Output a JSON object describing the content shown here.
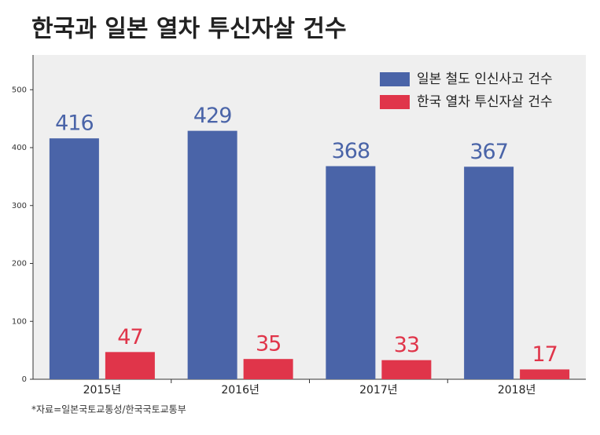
{
  "chart_data": {
    "type": "bar",
    "title": "한국과 일본 열차 투신자살 건수",
    "categories": [
      "2015년",
      "2016년",
      "2017년",
      "2018년"
    ],
    "series": [
      {
        "name": "일본 철도 인신사고 건수",
        "color": "#4a64a8",
        "values": [
          416,
          429,
          368,
          367
        ]
      },
      {
        "name": "한국 열차 투신자살 건수",
        "color": "#e0354a",
        "values": [
          47,
          35,
          33,
          17
        ]
      }
    ],
    "ylim": [
      0,
      560
    ],
    "yticks": [
      0,
      100,
      200,
      300,
      400,
      500
    ],
    "legend": "top-right",
    "source": "*자료=일본국토교통성/한국국토교통부"
  }
}
